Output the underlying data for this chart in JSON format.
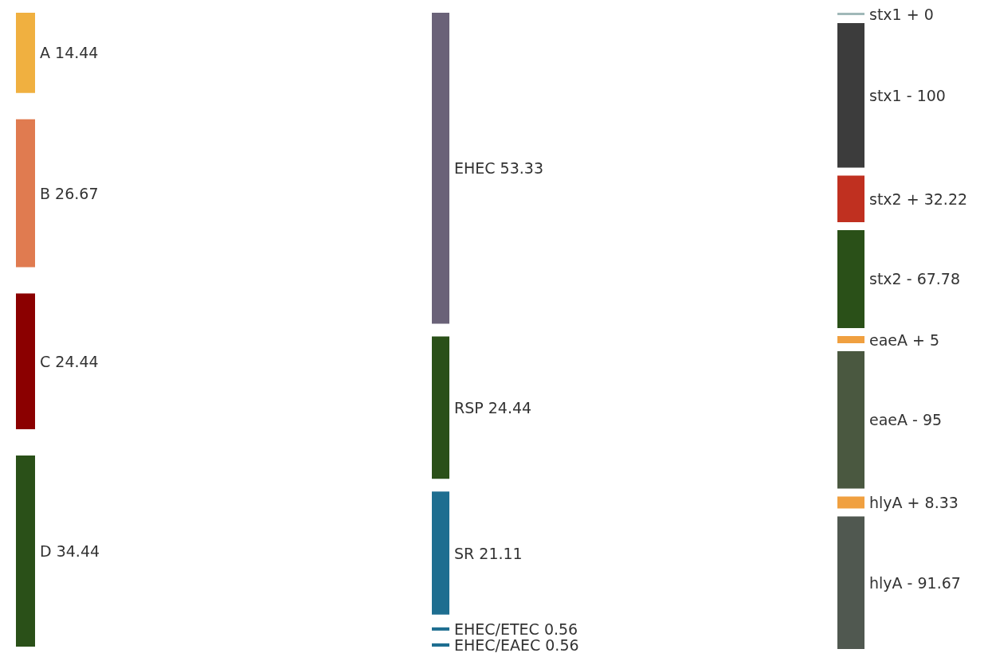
{
  "chart_data": {
    "type": "other",
    "data_labels": true,
    "categories": [
      "A",
      "B",
      "C",
      "D",
      "EHEC",
      "RSP",
      "SR",
      "EHEC/ETEC",
      "EHEC/EAEC",
      "stx1 +",
      "stx1 -",
      "stx2 +",
      "stx2 -",
      "eaeA +",
      "eaeA -",
      "hlyA +",
      "hlyA -"
    ],
    "series": [
      {
        "values": [
          14.44,
          26.67,
          24.44,
          34.44,
          null,
          null,
          null,
          null,
          null,
          null,
          null,
          null,
          null,
          null,
          null,
          null,
          null
        ],
        "colors": [
          "#f0b040",
          "#e07b50",
          "#8b0000",
          "#2a5018",
          null,
          null,
          null,
          null,
          null,
          null,
          null,
          null,
          null,
          null,
          null,
          null,
          null
        ]
      },
      {
        "values": [
          null,
          null,
          null,
          null,
          53.33,
          24.44,
          21.11,
          0.56,
          0.56,
          null,
          null,
          null,
          null,
          null,
          null,
          null,
          null
        ],
        "colors": [
          null,
          null,
          null,
          null,
          "#6a6278",
          "#2a5018",
          "#1e6e90",
          "#1e6e90",
          "#1e6e90",
          null,
          null,
          null,
          null,
          null,
          null,
          null,
          null
        ]
      },
      {
        "values": [
          null,
          null,
          null,
          null,
          null,
          null,
          null,
          null,
          null,
          0,
          100,
          32.22,
          67.78,
          5,
          95,
          8.33,
          91.67
        ],
        "colors": [
          null,
          null,
          null,
          null,
          null,
          null,
          null,
          null,
          null,
          "#a0b8b8",
          "#3c3c3c",
          "#c03020",
          "#2a5018",
          "#f0a040",
          "#4a5840",
          "#f0a040",
          "#505850"
        ]
      }
    ]
  }
}
